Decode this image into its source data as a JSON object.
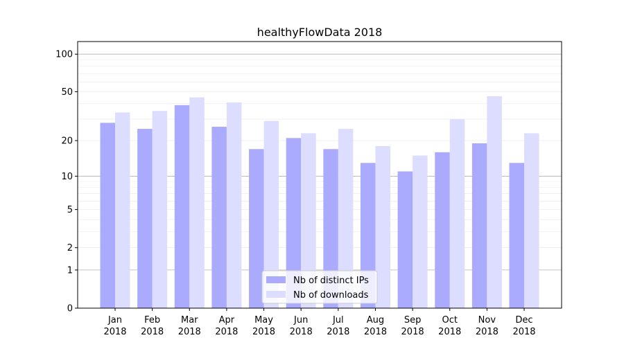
{
  "chart_data": {
    "type": "bar",
    "title": "healthyFlowData 2018",
    "xlabel": "",
    "ylabel": "",
    "yscale": "log10(1+y)",
    "ylim": [
      0,
      120
    ],
    "yticks": [
      0,
      1,
      2,
      5,
      10,
      20,
      50,
      100
    ],
    "ytick_labels": [
      "0",
      "1",
      "2",
      "5",
      "10",
      "20",
      "50",
      "100"
    ],
    "categories": [
      [
        "Jan",
        "2018"
      ],
      [
        "Feb",
        "2018"
      ],
      [
        "Mar",
        "2018"
      ],
      [
        "Apr",
        "2018"
      ],
      [
        "May",
        "2018"
      ],
      [
        "Jun",
        "2018"
      ],
      [
        "Jul",
        "2018"
      ],
      [
        "Aug",
        "2018"
      ],
      [
        "Sep",
        "2018"
      ],
      [
        "Oct",
        "2018"
      ],
      [
        "Nov",
        "2018"
      ],
      [
        "Dec",
        "2018"
      ]
    ],
    "series": [
      {
        "name": "Nb of distinct IPs",
        "color": "#aaaaff",
        "values": [
          28,
          25,
          39,
          26,
          17,
          21,
          17,
          13,
          11,
          16,
          19,
          13
        ]
      },
      {
        "name": "Nb of downloads",
        "color": "#ddddff",
        "values": [
          34,
          35,
          45,
          41,
          29,
          23,
          25,
          18,
          15,
          30,
          46,
          23
        ]
      }
    ],
    "legend": "bottom-center",
    "grid": true
  }
}
